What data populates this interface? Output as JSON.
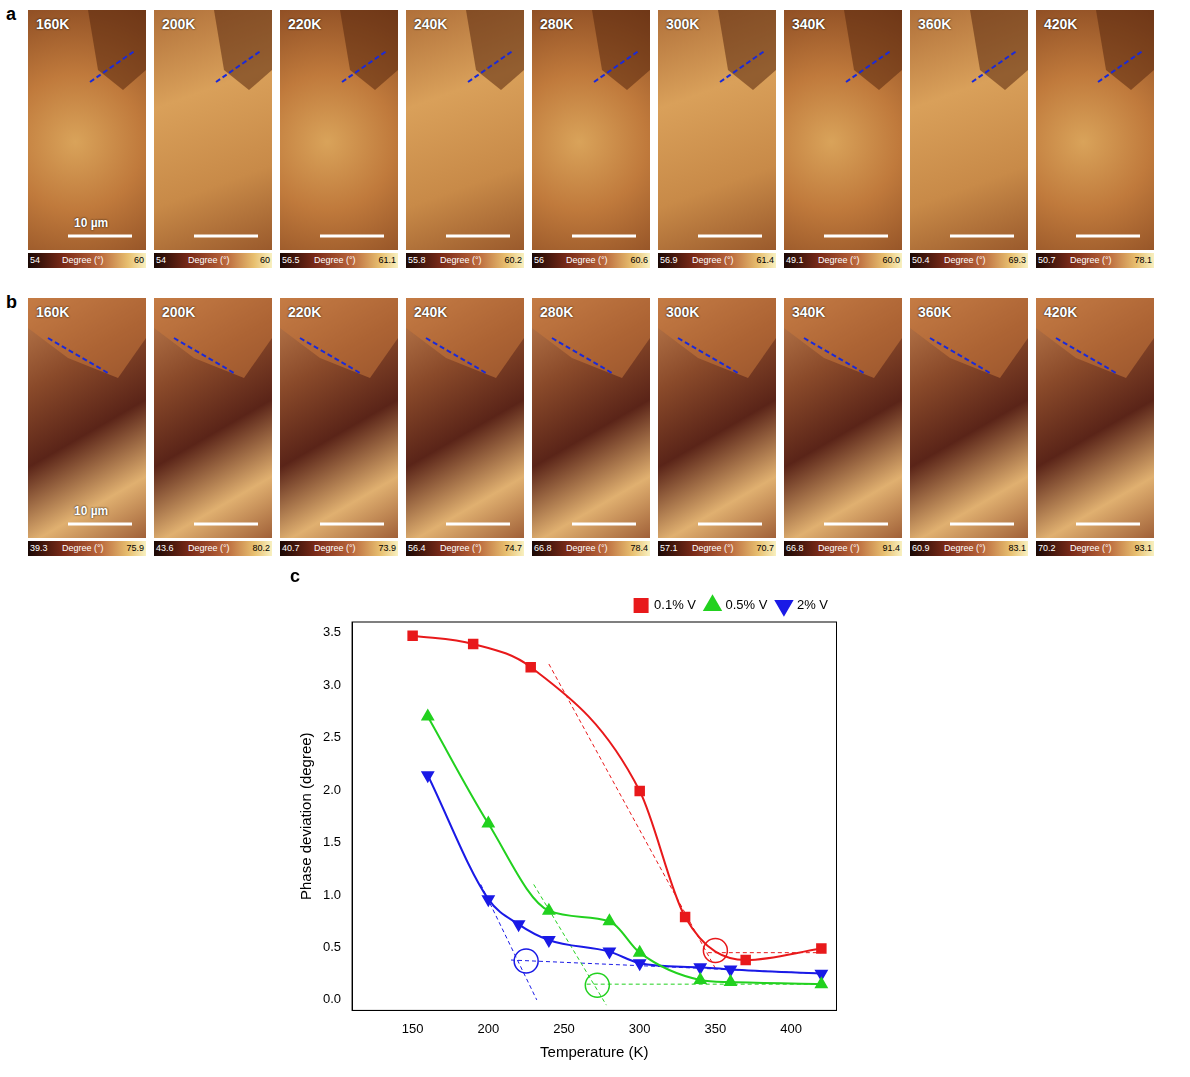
{
  "panel_a": {
    "letter": "a",
    "scale_bar": "10 µm",
    "colorbar_label": "Degree (°)",
    "tiles": [
      {
        "temperature": "160K",
        "min": 54,
        "max": 60
      },
      {
        "temperature": "200K",
        "min": 54,
        "max": 60
      },
      {
        "temperature": "220K",
        "min": 56.5,
        "max": 61.1
      },
      {
        "temperature": "240K",
        "min": 55.8,
        "max": 60.2
      },
      {
        "temperature": "280K",
        "min": 56,
        "max": 60.6
      },
      {
        "temperature": "300K",
        "min": 56.9,
        "max": 61.4
      },
      {
        "temperature": "340K",
        "min": 49.1,
        "max": {
          "value": 60,
          "label": "60.0"
        }
      },
      {
        "temperature": "360K",
        "min": 50.4,
        "max": 69.3
      },
      {
        "temperature": "420K",
        "min": 50.7,
        "max": 78.1
      }
    ]
  },
  "panel_b": {
    "letter": "b",
    "scale_bar": "10 µm",
    "colorbar_label": "Degree (°)",
    "tiles": [
      {
        "temperature": "160K",
        "min": 39.3,
        "max": 75.9
      },
      {
        "temperature": "200K",
        "min": 43.6,
        "max": 80.2
      },
      {
        "temperature": "220K",
        "min": 40.7,
        "max": 73.9
      },
      {
        "temperature": "240K",
        "min": 56.4,
        "max": 74.7
      },
      {
        "temperature": "280K",
        "min": 66.8,
        "max": 78.4
      },
      {
        "temperature": "300K",
        "min": 57.1,
        "max": 70.7
      },
      {
        "temperature": "340K",
        "min": 66.8,
        "max": 91.4
      },
      {
        "temperature": "360K",
        "min": 60.9,
        "max": 83.1
      },
      {
        "temperature": "420K",
        "min": 70.2,
        "max": 93.1
      }
    ]
  },
  "chart_data": {
    "letter": "c",
    "type": "line",
    "x_label": "Temperature (K)",
    "y_label": "Phase deviation (degree)",
    "xlim": [
      110,
      430
    ],
    "xticks": [
      150,
      200,
      250,
      300,
      350,
      400
    ],
    "ylim": [
      -0.1,
      3.6
    ],
    "yticks": [
      {
        "value": 0,
        "label": "0.0"
      },
      0.5,
      {
        "value": 1,
        "label": "1.0"
      },
      1.5,
      {
        "value": 2,
        "label": "2.0"
      },
      2.5,
      {
        "value": 3,
        "label": "3.0"
      },
      3.5
    ],
    "grid": false,
    "legend": "top right",
    "series": [
      {
        "name": "0.1% V",
        "color": "#e8191b",
        "marker": "square",
        "x": [
          150,
          190,
          228,
          300,
          330,
          370,
          420
        ],
        "values": [
          3.47,
          3.39,
          3.17,
          1.99,
          0.79,
          0.38,
          0.49
        ],
        "tangent_lines": [
          [
            [
              240,
              3.2
            ],
            [
              350,
              0.3
            ]
          ],
          [
            [
              345,
              0.45
            ],
            [
              420,
              0.45
            ]
          ]
        ],
        "transition_point": [
          350,
          0.47
        ]
      },
      {
        "name": "0.5% V",
        "color": "#22d11f",
        "marker": "triangle",
        "x": [
          160,
          200,
          240,
          280,
          300,
          340,
          360,
          420
        ],
        "values": [
          2.7,
          1.68,
          0.85,
          0.75,
          0.45,
          0.19,
          0.17,
          0.15
        ],
        "tangent_lines": [
          [
            [
              230,
              1.1
            ],
            [
              278,
              -0.05
            ]
          ],
          [
            [
              265,
              0.15
            ],
            [
              420,
              0.15
            ]
          ]
        ],
        "transition_point": [
          272,
          0.14
        ]
      },
      {
        "name": "2% V",
        "color": "#1a1ae6",
        "marker": "triangle-down",
        "x": [
          160,
          200,
          220,
          240,
          280,
          300,
          340,
          360,
          420
        ],
        "values": [
          2.14,
          0.96,
          0.72,
          0.57,
          0.46,
          0.35,
          0.31,
          0.29,
          0.25
        ],
        "tangent_lines": [
          [
            [
              195,
              1.1
            ],
            [
              232,
              0.0
            ]
          ],
          [
            [
              215,
              0.38
            ],
            [
              420,
              0.25
            ]
          ]
        ],
        "transition_point": [
          225,
          0.37
        ]
      }
    ]
  }
}
